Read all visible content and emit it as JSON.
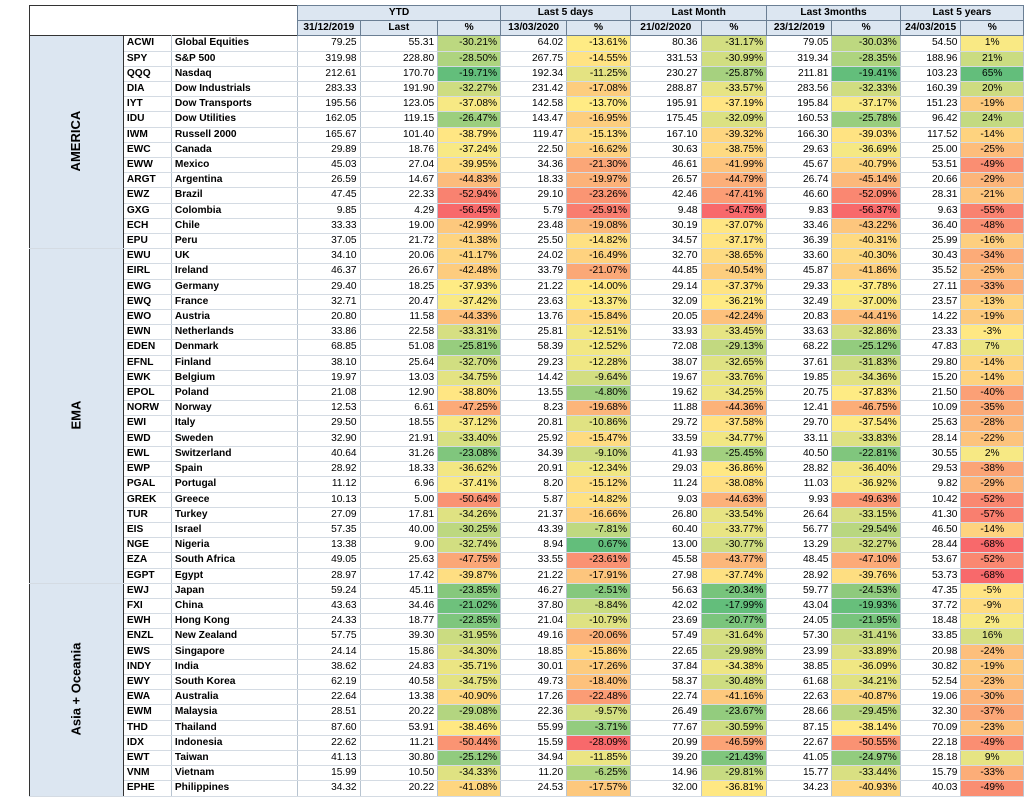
{
  "headers": {
    "groups": [
      "YTD",
      "Last 5 days",
      "Last Month",
      "Last 3months",
      "Last 5 years"
    ],
    "cols": [
      "31/12/2019",
      "Last",
      "%",
      "13/03/2020",
      "%",
      "21/02/2020",
      "%",
      "23/12/2019",
      "%",
      "24/03/2015",
      "%"
    ]
  },
  "regions": [
    {
      "name": "AMERICA",
      "rows": [
        {
          "t": "ACWI",
          "n": "Global Equities",
          "c": [
            "79.25",
            "55.31",
            "-30.21%",
            "64.02",
            "-13.61%",
            "80.36",
            "-31.17%",
            "79.05",
            "-30.03%",
            "54.50",
            "1%"
          ]
        },
        {
          "t": "SPY",
          "n": "S&P 500",
          "c": [
            "319.98",
            "228.80",
            "-28.50%",
            "267.75",
            "-14.55%",
            "331.53",
            "-30.99%",
            "319.34",
            "-28.35%",
            "188.96",
            "21%"
          ]
        },
        {
          "t": "QQQ",
          "n": "Nasdaq",
          "c": [
            "212.61",
            "170.70",
            "-19.71%",
            "192.34",
            "-11.25%",
            "230.27",
            "-25.87%",
            "211.81",
            "-19.41%",
            "103.23",
            "65%"
          ]
        },
        {
          "t": "DIA",
          "n": "Dow Industrials",
          "c": [
            "283.33",
            "191.90",
            "-32.27%",
            "231.42",
            "-17.08%",
            "288.87",
            "-33.57%",
            "283.56",
            "-32.33%",
            "160.39",
            "20%"
          ]
        },
        {
          "t": "IYT",
          "n": "Dow Transports",
          "c": [
            "195.56",
            "123.05",
            "-37.08%",
            "142.58",
            "-13.70%",
            "195.91",
            "-37.19%",
            "195.84",
            "-37.17%",
            "151.23",
            "-19%"
          ]
        },
        {
          "t": "IDU",
          "n": "Dow Utilities",
          "c": [
            "162.05",
            "119.15",
            "-26.47%",
            "143.47",
            "-16.95%",
            "175.45",
            "-32.09%",
            "160.53",
            "-25.78%",
            "96.42",
            "24%"
          ]
        },
        {
          "t": "IWM",
          "n": "Russell 2000",
          "c": [
            "165.67",
            "101.40",
            "-38.79%",
            "119.47",
            "-15.13%",
            "167.10",
            "-39.32%",
            "166.30",
            "-39.03%",
            "117.52",
            "-14%"
          ]
        },
        {
          "t": "EWC",
          "n": "Canada",
          "c": [
            "29.89",
            "18.76",
            "-37.24%",
            "22.50",
            "-16.62%",
            "30.63",
            "-38.75%",
            "29.63",
            "-36.69%",
            "25.00",
            "-25%"
          ]
        },
        {
          "t": "EWW",
          "n": "Mexico",
          "c": [
            "45.03",
            "27.04",
            "-39.95%",
            "34.36",
            "-21.30%",
            "46.61",
            "-41.99%",
            "45.67",
            "-40.79%",
            "53.51",
            "-49%"
          ]
        },
        {
          "t": "ARGT",
          "n": "Argentina",
          "c": [
            "26.59",
            "14.67",
            "-44.83%",
            "18.33",
            "-19.97%",
            "26.57",
            "-44.79%",
            "26.74",
            "-45.14%",
            "20.66",
            "-29%"
          ]
        },
        {
          "t": "EWZ",
          "n": "Brazil",
          "c": [
            "47.45",
            "22.33",
            "-52.94%",
            "29.10",
            "-23.26%",
            "42.46",
            "-47.41%",
            "46.60",
            "-52.09%",
            "28.31",
            "-21%"
          ]
        },
        {
          "t": "GXG",
          "n": "Colombia",
          "c": [
            "9.85",
            "4.29",
            "-56.45%",
            "5.79",
            "-25.91%",
            "9.48",
            "-54.75%",
            "9.83",
            "-56.37%",
            "9.63",
            "-55%"
          ]
        },
        {
          "t": "ECH",
          "n": "Chile",
          "c": [
            "33.33",
            "19.00",
            "-42.99%",
            "23.48",
            "-19.08%",
            "30.19",
            "-37.07%",
            "33.46",
            "-43.22%",
            "36.40",
            "-48%"
          ]
        },
        {
          "t": "EPU",
          "n": "Peru",
          "c": [
            "37.05",
            "21.72",
            "-41.38%",
            "25.50",
            "-14.82%",
            "34.57",
            "-37.17%",
            "36.39",
            "-40.31%",
            "25.99",
            "-16%"
          ]
        }
      ]
    },
    {
      "name": "EMA",
      "rows": [
        {
          "t": "EWU",
          "n": "UK",
          "c": [
            "34.10",
            "20.06",
            "-41.17%",
            "24.02",
            "-16.49%",
            "32.70",
            "-38.65%",
            "33.60",
            "-40.30%",
            "30.43",
            "-34%"
          ]
        },
        {
          "t": "EIRL",
          "n": "Ireland",
          "c": [
            "46.37",
            "26.67",
            "-42.48%",
            "33.79",
            "-21.07%",
            "44.85",
            "-40.54%",
            "45.87",
            "-41.86%",
            "35.52",
            "-25%"
          ]
        },
        {
          "t": "EWG",
          "n": "Germany",
          "c": [
            "29.40",
            "18.25",
            "-37.93%",
            "21.22",
            "-14.00%",
            "29.14",
            "-37.37%",
            "29.33",
            "-37.78%",
            "27.11",
            "-33%"
          ]
        },
        {
          "t": "EWQ",
          "n": "France",
          "c": [
            "32.71",
            "20.47",
            "-37.42%",
            "23.63",
            "-13.37%",
            "32.09",
            "-36.21%",
            "32.49",
            "-37.00%",
            "23.57",
            "-13%"
          ]
        },
        {
          "t": "EWO",
          "n": "Austria",
          "c": [
            "20.80",
            "11.58",
            "-44.33%",
            "13.76",
            "-15.84%",
            "20.05",
            "-42.24%",
            "20.83",
            "-44.41%",
            "14.22",
            "-19%"
          ]
        },
        {
          "t": "EWN",
          "n": "Netherlands",
          "c": [
            "33.86",
            "22.58",
            "-33.31%",
            "25.81",
            "-12.51%",
            "33.93",
            "-33.45%",
            "33.63",
            "-32.86%",
            "23.33",
            "-3%"
          ]
        },
        {
          "t": "EDEN",
          "n": "Denmark",
          "c": [
            "68.85",
            "51.08",
            "-25.81%",
            "58.39",
            "-12.52%",
            "72.08",
            "-29.13%",
            "68.22",
            "-25.12%",
            "47.83",
            "7%"
          ]
        },
        {
          "t": "EFNL",
          "n": "Finland",
          "c": [
            "38.10",
            "25.64",
            "-32.70%",
            "29.23",
            "-12.28%",
            "38.07",
            "-32.65%",
            "37.61",
            "-31.83%",
            "29.80",
            "-14%"
          ]
        },
        {
          "t": "EWK",
          "n": "Belgium",
          "c": [
            "19.97",
            "13.03",
            "-34.75%",
            "14.42",
            "-9.64%",
            "19.67",
            "-33.76%",
            "19.85",
            "-34.36%",
            "15.20",
            "-14%"
          ]
        },
        {
          "t": "EPOL",
          "n": "Poland",
          "c": [
            "21.08",
            "12.90",
            "-38.80%",
            "13.55",
            "-4.80%",
            "19.62",
            "-34.25%",
            "20.75",
            "-37.83%",
            "21.50",
            "-40%"
          ]
        },
        {
          "t": "NORW",
          "n": "Norway",
          "c": [
            "12.53",
            "6.61",
            "-47.25%",
            "8.23",
            "-19.68%",
            "11.88",
            "-44.36%",
            "12.41",
            "-46.75%",
            "10.09",
            "-35%"
          ]
        },
        {
          "t": "EWI",
          "n": "Italy",
          "c": [
            "29.50",
            "18.55",
            "-37.12%",
            "20.81",
            "-10.86%",
            "29.72",
            "-37.58%",
            "29.70",
            "-37.54%",
            "25.63",
            "-28%"
          ]
        },
        {
          "t": "EWD",
          "n": "Sweden",
          "c": [
            "32.90",
            "21.91",
            "-33.40%",
            "25.92",
            "-15.47%",
            "33.59",
            "-34.77%",
            "33.11",
            "-33.83%",
            "28.14",
            "-22%"
          ]
        },
        {
          "t": "EWL",
          "n": "Switzerland",
          "c": [
            "40.64",
            "31.26",
            "-23.08%",
            "34.39",
            "-9.10%",
            "41.93",
            "-25.45%",
            "40.50",
            "-22.81%",
            "30.55",
            "2%"
          ]
        },
        {
          "t": "EWP",
          "n": "Spain",
          "c": [
            "28.92",
            "18.33",
            "-36.62%",
            "20.91",
            "-12.34%",
            "29.03",
            "-36.86%",
            "28.82",
            "-36.40%",
            "29.53",
            "-38%"
          ]
        },
        {
          "t": "PGAL",
          "n": "Portugal",
          "c": [
            "11.12",
            "6.96",
            "-37.41%",
            "8.20",
            "-15.12%",
            "11.24",
            "-38.08%",
            "11.03",
            "-36.92%",
            "9.82",
            "-29%"
          ]
        },
        {
          "t": "GREK",
          "n": "Greece",
          "c": [
            "10.13",
            "5.00",
            "-50.64%",
            "5.87",
            "-14.82%",
            "9.03",
            "-44.63%",
            "9.93",
            "-49.63%",
            "10.42",
            "-52%"
          ]
        },
        {
          "t": "TUR",
          "n": "Turkey",
          "c": [
            "27.09",
            "17.81",
            "-34.26%",
            "21.37",
            "-16.66%",
            "26.80",
            "-33.54%",
            "26.64",
            "-33.15%",
            "41.30",
            "-57%"
          ]
        },
        {
          "t": "EIS",
          "n": "Israel",
          "c": [
            "57.35",
            "40.00",
            "-30.25%",
            "43.39",
            "-7.81%",
            "60.40",
            "-33.77%",
            "56.77",
            "-29.54%",
            "46.50",
            "-14%"
          ]
        },
        {
          "t": "NGE",
          "n": "Nigeria",
          "c": [
            "13.38",
            "9.00",
            "-32.74%",
            "8.94",
            "0.67%",
            "13.00",
            "-30.77%",
            "13.29",
            "-32.27%",
            "28.44",
            "-68%"
          ]
        },
        {
          "t": "EZA",
          "n": "South Africa",
          "c": [
            "49.05",
            "25.63",
            "-47.75%",
            "33.55",
            "-23.61%",
            "45.58",
            "-43.77%",
            "48.45",
            "-47.10%",
            "53.67",
            "-52%"
          ]
        },
        {
          "t": "EGPT",
          "n": "Egypt",
          "c": [
            "28.97",
            "17.42",
            "-39.87%",
            "21.22",
            "-17.91%",
            "27.98",
            "-37.74%",
            "28.92",
            "-39.76%",
            "53.73",
            "-68%"
          ]
        }
      ]
    },
    {
      "name": "Asia + Oceania",
      "rows": [
        {
          "t": "EWJ",
          "n": "Japan",
          "c": [
            "59.24",
            "45.11",
            "-23.85%",
            "46.27",
            "-2.51%",
            "56.63",
            "-20.34%",
            "59.77",
            "-24.53%",
            "47.35",
            "-5%"
          ]
        },
        {
          "t": "FXI",
          "n": "China",
          "c": [
            "43.63",
            "34.46",
            "-21.02%",
            "37.80",
            "-8.84%",
            "42.02",
            "-17.99%",
            "43.04",
            "-19.93%",
            "37.72",
            "-9%"
          ]
        },
        {
          "t": "EWH",
          "n": "Hong Kong",
          "c": [
            "24.33",
            "18.77",
            "-22.85%",
            "21.04",
            "-10.79%",
            "23.69",
            "-20.77%",
            "24.05",
            "-21.95%",
            "18.48",
            "2%"
          ]
        },
        {
          "t": "ENZL",
          "n": "New Zealand",
          "c": [
            "57.75",
            "39.30",
            "-31.95%",
            "49.16",
            "-20.06%",
            "57.49",
            "-31.64%",
            "57.30",
            "-31.41%",
            "33.85",
            "16%"
          ]
        },
        {
          "t": "EWS",
          "n": "Singapore",
          "c": [
            "24.14",
            "15.86",
            "-34.30%",
            "18.85",
            "-15.86%",
            "22.65",
            "-29.98%",
            "23.99",
            "-33.89%",
            "20.98",
            "-24%"
          ]
        },
        {
          "t": "INDY",
          "n": "India",
          "c": [
            "38.62",
            "24.83",
            "-35.71%",
            "30.01",
            "-17.26%",
            "37.84",
            "-34.38%",
            "38.85",
            "-36.09%",
            "30.82",
            "-19%"
          ]
        },
        {
          "t": "EWY",
          "n": "South Korea",
          "c": [
            "62.19",
            "40.58",
            "-34.75%",
            "49.73",
            "-18.40%",
            "58.37",
            "-30.48%",
            "61.68",
            "-34.21%",
            "52.54",
            "-23%"
          ]
        },
        {
          "t": "EWA",
          "n": "Australia",
          "c": [
            "22.64",
            "13.38",
            "-40.90%",
            "17.26",
            "-22.48%",
            "22.74",
            "-41.16%",
            "22.63",
            "-40.87%",
            "19.06",
            "-30%"
          ]
        },
        {
          "t": "EWM",
          "n": "Malaysia",
          "c": [
            "28.51",
            "20.22",
            "-29.08%",
            "22.36",
            "-9.57%",
            "26.49",
            "-23.67%",
            "28.66",
            "-29.45%",
            "32.30",
            "-37%"
          ]
        },
        {
          "t": "THD",
          "n": "Thailand",
          "c": [
            "87.60",
            "53.91",
            "-38.46%",
            "55.99",
            "-3.71%",
            "77.67",
            "-30.59%",
            "87.15",
            "-38.14%",
            "70.09",
            "-23%"
          ]
        },
        {
          "t": "IDX",
          "n": "Indonesia",
          "c": [
            "22.62",
            "11.21",
            "-50.44%",
            "15.59",
            "-28.09%",
            "20.99",
            "-46.59%",
            "22.67",
            "-50.55%",
            "22.18",
            "-49%"
          ]
        },
        {
          "t": "EWT",
          "n": "Taiwan",
          "c": [
            "41.13",
            "30.80",
            "-25.12%",
            "34.94",
            "-11.85%",
            "39.20",
            "-21.43%",
            "41.05",
            "-24.97%",
            "28.18",
            "9%"
          ]
        },
        {
          "t": "VNM",
          "n": "Vietnam",
          "c": [
            "15.99",
            "10.50",
            "-34.33%",
            "11.20",
            "-6.25%",
            "14.96",
            "-29.81%",
            "15.77",
            "-33.44%",
            "15.79",
            "-33%"
          ]
        },
        {
          "t": "EPHE",
          "n": "Philippines",
          "c": [
            "34.32",
            "20.22",
            "-41.08%",
            "24.53",
            "-17.57%",
            "32.00",
            "-36.81%",
            "34.23",
            "-40.93%",
            "40.03",
            "-49%"
          ]
        }
      ]
    }
  ],
  "colors": {
    "header_bg": "#dce6f1",
    "scale_red": "#f8696b",
    "scale_yellow": "#ffeb84",
    "scale_green": "#63be7b"
  }
}
